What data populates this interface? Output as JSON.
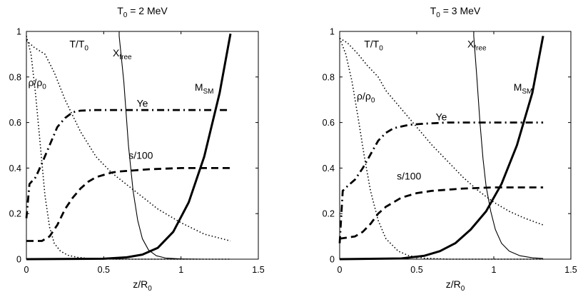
{
  "chart_data": [
    {
      "type": "line",
      "title": {
        "main": "T",
        "sub": "0",
        "rest": " = 2 MeV"
      },
      "xlabel": {
        "main": "z/R",
        "sub": "0"
      },
      "ylabel": "",
      "xlim": [
        0,
        1.5
      ],
      "ylim": [
        0,
        1
      ],
      "xticks": [
        "0",
        "0.5",
        "1",
        "1.5"
      ],
      "yticks": [
        "0",
        "0.2",
        "0.4",
        "0.6",
        "0.8",
        "1"
      ],
      "series": [
        {
          "name": "T/T0",
          "style": "dotted",
          "x": [
            0,
            0.05,
            0.12,
            0.18,
            0.25,
            0.35,
            0.45,
            0.55,
            0.7,
            0.85,
            1.0,
            1.15,
            1.32
          ],
          "y": [
            0.96,
            0.93,
            0.9,
            0.82,
            0.7,
            0.56,
            0.45,
            0.38,
            0.3,
            0.22,
            0.16,
            0.11,
            0.08
          ]
        },
        {
          "name": "rho/rho0",
          "style": "dotted",
          "x": [
            0,
            0.03,
            0.06,
            0.09,
            0.12,
            0.15,
            0.18,
            0.22,
            0.27,
            0.33,
            0.4,
            0.5,
            0.6,
            1.32
          ],
          "y": [
            0.98,
            0.9,
            0.72,
            0.5,
            0.28,
            0.14,
            0.07,
            0.035,
            0.017,
            0.008,
            0.003,
            0.001,
            0,
            0
          ]
        },
        {
          "name": "Xfree",
          "style": "thin",
          "x": [
            0,
            0.6,
            0.6,
            0.63,
            0.66,
            0.69,
            0.72,
            0.75,
            0.79,
            0.84,
            0.9,
            1.0,
            1.15,
            1.32
          ],
          "y": [
            1,
            1,
            0.98,
            0.78,
            0.5,
            0.3,
            0.17,
            0.09,
            0.04,
            0.015,
            0.005,
            0.001,
            0,
            0
          ]
        },
        {
          "name": "MSM",
          "style": "thick",
          "x": [
            0,
            0.5,
            0.65,
            0.75,
            0.85,
            0.95,
            1.05,
            1.15,
            1.25,
            1.32
          ],
          "y": [
            0,
            0.002,
            0.008,
            0.02,
            0.05,
            0.12,
            0.25,
            0.45,
            0.73,
            0.99
          ]
        },
        {
          "name": "Ye",
          "style": "dashdot",
          "x": [
            0,
            0.02,
            0.06,
            0.1,
            0.15,
            0.2,
            0.25,
            0.3,
            0.35,
            0.45,
            0.6,
            1.32
          ],
          "y": [
            0.18,
            0.33,
            0.36,
            0.42,
            0.5,
            0.58,
            0.62,
            0.645,
            0.652,
            0.655,
            0.655,
            0.655
          ]
        },
        {
          "name": "s/100",
          "style": "dashed",
          "x": [
            0,
            0.1,
            0.15,
            0.2,
            0.25,
            0.3,
            0.35,
            0.4,
            0.45,
            0.5,
            0.55,
            0.6,
            0.7,
            0.8,
            1.0,
            1.32
          ],
          "y": [
            0.08,
            0.08,
            0.1,
            0.15,
            0.22,
            0.27,
            0.31,
            0.34,
            0.36,
            0.37,
            0.38,
            0.385,
            0.39,
            0.395,
            0.4,
            0.4
          ]
        }
      ],
      "annotations": [
        {
          "series": "T/T0",
          "main": "T/T",
          "sub": "0",
          "at": [
            0.34,
            0.93
          ]
        },
        {
          "series": "rho/rho0",
          "main": "ρ/ρ",
          "sub": "0",
          "at": [
            0.07,
            0.76
          ]
        },
        {
          "series": "Xfree",
          "main": "X",
          "sub": "free",
          "at": [
            0.62,
            0.89
          ]
        },
        {
          "series": "MSM",
          "main": "M",
          "sub": "SM",
          "at": [
            1.15,
            0.74
          ]
        },
        {
          "series": "Ye",
          "main": "Ye",
          "sub": "",
          "at": [
            0.75,
            0.67
          ]
        },
        {
          "series": "s/100",
          "main": "s/100",
          "sub": "",
          "at": [
            0.74,
            0.44
          ]
        }
      ]
    },
    {
      "type": "line",
      "title": {
        "main": "T",
        "sub": "0",
        "rest": " = 3 MeV"
      },
      "xlabel": {
        "main": "z/R",
        "sub": "0"
      },
      "ylabel": "",
      "xlim": [
        0,
        1.5
      ],
      "ylim": [
        0,
        1
      ],
      "xticks": [
        "0",
        "0.5",
        "1",
        "1.5"
      ],
      "yticks": [
        "0",
        "0.2",
        "0.4",
        "0.6",
        "0.8",
        "1"
      ],
      "series": [
        {
          "name": "T/T0",
          "style": "dotted",
          "x": [
            0,
            0.05,
            0.12,
            0.18,
            0.25,
            0.3,
            0.4,
            0.5,
            0.6,
            0.7,
            0.8,
            0.9,
            1.0,
            1.1,
            1.2,
            1.32
          ],
          "y": [
            0.97,
            0.95,
            0.9,
            0.85,
            0.8,
            0.74,
            0.66,
            0.58,
            0.5,
            0.43,
            0.36,
            0.3,
            0.25,
            0.21,
            0.18,
            0.15
          ]
        },
        {
          "name": "rho/rho0",
          "style": "dotted",
          "x": [
            0,
            0.04,
            0.08,
            0.12,
            0.16,
            0.2,
            0.25,
            0.3,
            0.38,
            0.45,
            0.55,
            0.7,
            1.32
          ],
          "y": [
            0.97,
            0.9,
            0.78,
            0.62,
            0.45,
            0.3,
            0.17,
            0.09,
            0.035,
            0.015,
            0.004,
            0,
            0
          ]
        },
        {
          "name": "Xfree",
          "style": "thin",
          "x": [
            0,
            0.87,
            0.87,
            0.89,
            0.91,
            0.93,
            0.95,
            0.98,
            1.01,
            1.05,
            1.1,
            1.17,
            1.25,
            1.32
          ],
          "y": [
            1,
            1,
            0.98,
            0.8,
            0.6,
            0.44,
            0.32,
            0.21,
            0.13,
            0.07,
            0.035,
            0.015,
            0.006,
            0.003
          ]
        },
        {
          "name": "MSM",
          "style": "thick",
          "x": [
            0,
            0.4,
            0.55,
            0.65,
            0.75,
            0.85,
            0.95,
            1.05,
            1.15,
            1.25,
            1.32
          ],
          "y": [
            0,
            0.003,
            0.015,
            0.035,
            0.07,
            0.13,
            0.21,
            0.33,
            0.5,
            0.73,
            0.98
          ]
        },
        {
          "name": "Ye",
          "style": "dashdot",
          "x": [
            0,
            0.02,
            0.05,
            0.1,
            0.15,
            0.2,
            0.25,
            0.3,
            0.35,
            0.45,
            0.55,
            0.7,
            1.32
          ],
          "y": [
            0.07,
            0.3,
            0.32,
            0.35,
            0.4,
            0.46,
            0.52,
            0.555,
            0.575,
            0.59,
            0.595,
            0.6,
            0.6
          ]
        },
        {
          "name": "s/100",
          "style": "dashed",
          "x": [
            0,
            0.1,
            0.15,
            0.2,
            0.25,
            0.3,
            0.35,
            0.4,
            0.5,
            0.6,
            0.7,
            0.8,
            1.0,
            1.32
          ],
          "y": [
            0.09,
            0.1,
            0.12,
            0.155,
            0.2,
            0.23,
            0.25,
            0.27,
            0.29,
            0.3,
            0.305,
            0.31,
            0.315,
            0.315
          ]
        }
      ],
      "annotations": [
        {
          "series": "T/T0",
          "main": "T/T",
          "sub": "0",
          "at": [
            0.22,
            0.93
          ]
        },
        {
          "series": "rho/rho0",
          "main": "ρ/ρ",
          "sub": "0",
          "at": [
            0.17,
            0.7
          ]
        },
        {
          "series": "Xfree",
          "main": "X",
          "sub": "free",
          "at": [
            0.89,
            0.93
          ]
        },
        {
          "series": "MSM",
          "main": "M",
          "sub": "SM",
          "at": [
            1.19,
            0.74
          ]
        },
        {
          "series": "Ye",
          "main": "Ye",
          "sub": "",
          "at": [
            0.66,
            0.61
          ]
        },
        {
          "series": "s/100",
          "main": "s/100",
          "sub": "",
          "at": [
            0.45,
            0.35
          ]
        }
      ]
    }
  ]
}
